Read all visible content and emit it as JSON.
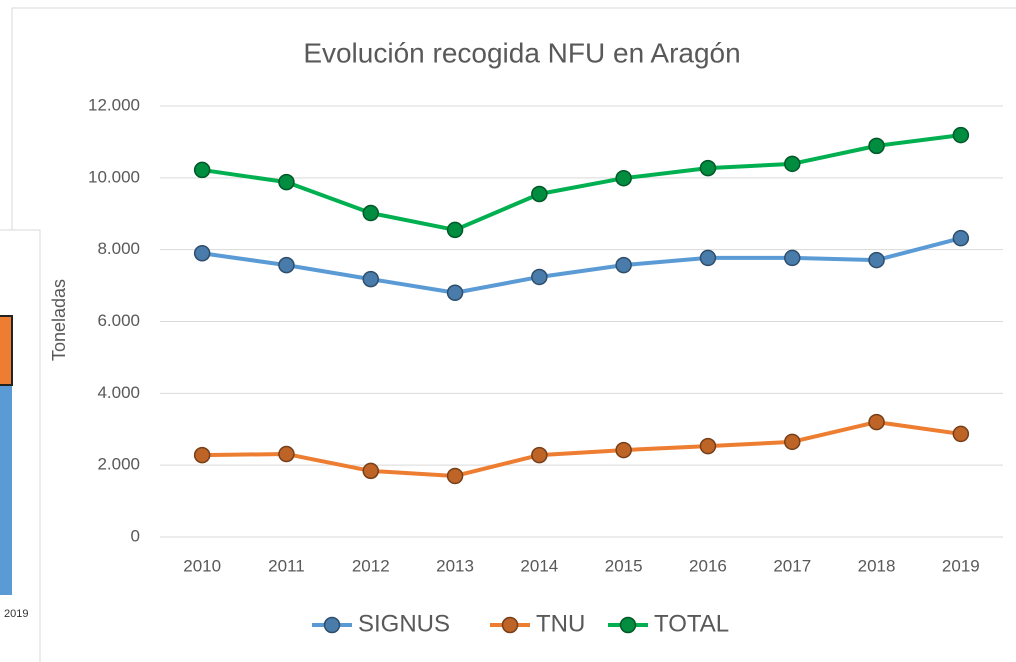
{
  "chart_data": {
    "type": "line",
    "title": "Evolución recogida NFU en Aragón",
    "y_label": "Toneladas",
    "categories": [
      "2010",
      "2011",
      "2012",
      "2013",
      "2014",
      "2015",
      "2016",
      "2017",
      "2018",
      "2019"
    ],
    "series": [
      {
        "name": "SIGNUS",
        "color": "#5b9bd5",
        "values": [
          7900,
          7570,
          7180,
          6800,
          7240,
          7570,
          7770,
          7770,
          7710,
          8320
        ]
      },
      {
        "name": "TNU",
        "color": "#ed7d31",
        "values": [
          2280,
          2310,
          1840,
          1700,
          2280,
          2420,
          2530,
          2650,
          3200,
          2870
        ]
      },
      {
        "name": "TOTAL",
        "color": "#00b050",
        "values": [
          10220,
          9880,
          9020,
          8550,
          9550,
          9990,
          10270,
          10390,
          10890,
          11190
        ]
      }
    ],
    "ylim": [
      0,
      12000
    ],
    "yticks": [
      0,
      {
        "value": 2000,
        "label": "2.000"
      },
      {
        "value": 4000,
        "label": "4.000"
      },
      {
        "value": 6000,
        "label": "6.000"
      },
      {
        "value": 8000,
        "label": "8.000"
      },
      {
        "value": 10000,
        "label": "10.000"
      },
      {
        "value": 12000,
        "label": "12.000"
      }
    ],
    "grid": true,
    "legend": "bottom"
  },
  "background_chart": {
    "x_label": "2019"
  }
}
